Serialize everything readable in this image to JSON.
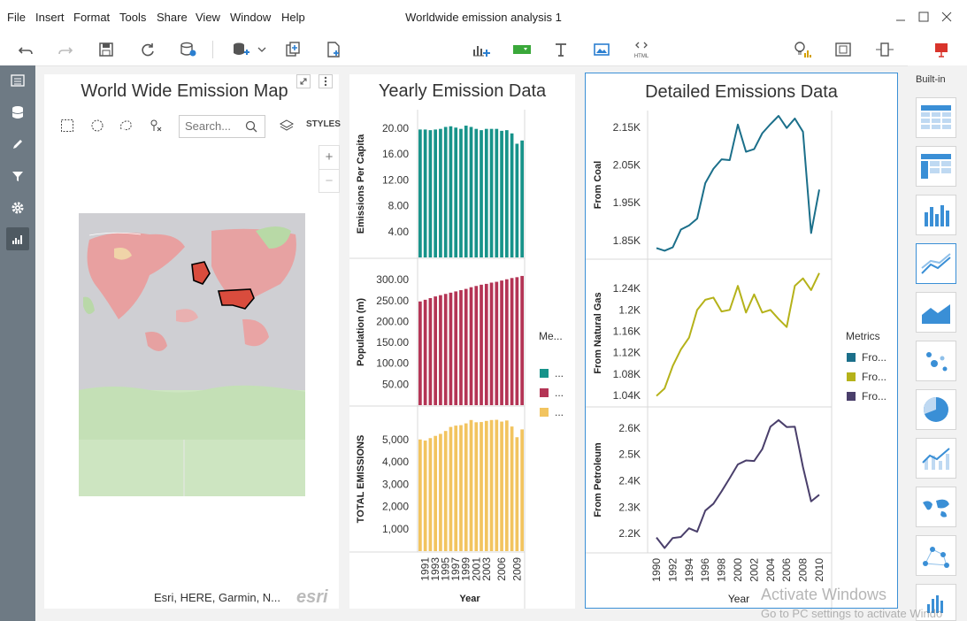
{
  "window": {
    "title": "Worldwide emission analysis 1"
  },
  "menu": [
    "File",
    "Insert",
    "Format",
    "Tools",
    "Share",
    "View",
    "Window",
    "Help"
  ],
  "toolbar_icons": [
    "undo-icon",
    "redo-icon",
    "save-icon",
    "refresh-icon",
    "data-source-icon",
    "add-data-icon",
    "copy-page-icon",
    "new-page-icon",
    "add-chart-icon",
    "add-filter-icon",
    "add-text-icon",
    "add-image-icon",
    "add-html-icon",
    "insights-icon",
    "fit-icon",
    "layout-icon",
    "presentation-icon"
  ],
  "toolbar": {
    "html_label": "HTML"
  },
  "map_panel": {
    "title": "World Wide Emission Map",
    "search_placeholder": "Search...",
    "styles_label": "STYLES",
    "attribution": "Esri, HERE, Garmin, N...",
    "esri_logo": "esri",
    "zoom_in": "+",
    "zoom_out": "−"
  },
  "yearly_panel": {
    "title": "Yearly Emission Data",
    "xlabel": "Year",
    "legend_title": "Me...",
    "legend_items": [
      "...",
      "...",
      "..."
    ]
  },
  "detailed_panel": {
    "title": "Detailed Emissions Data",
    "xlabel": "Year",
    "legend_title": "Metrics",
    "legend_items": [
      "Fro...",
      "Fro...",
      "Fro..."
    ]
  },
  "gallery": {
    "title": "Built-in"
  },
  "watermark": {
    "line1": "Activate Windows",
    "line2": "Go to PC settings to activate Windo"
  },
  "colors": {
    "teal": "#17938a",
    "crimson": "#b43455",
    "gold": "#f2c45f",
    "coal": "#1b6f8a",
    "gas": "#b5b21a",
    "petroleum": "#4a3f6b"
  },
  "chart_data": [
    {
      "type": "bar",
      "title": "Yearly Emission Data",
      "categories": [
        "1990",
        "1991",
        "1992",
        "1993",
        "1994",
        "1995",
        "1996",
        "1997",
        "1998",
        "1999",
        "2000",
        "2001",
        "2002",
        "2003",
        "2004",
        "2005",
        "2006",
        "2007",
        "2008",
        "2009",
        "2010"
      ],
      "xticks": [
        "1991",
        "1993",
        "1995",
        "1997",
        "1999",
        "2001",
        "2003",
        "2006",
        "2009"
      ],
      "xlabel": "Year",
      "panels": [
        {
          "ylabel": "Emissions Per Capita",
          "ylim": [
            0,
            21.5
          ],
          "yticks": [
            "4.00",
            "8.00",
            "12.00",
            "16.00",
            "20.00"
          ],
          "values": [
            19.8,
            19.8,
            19.7,
            19.8,
            19.9,
            20.2,
            20.3,
            20.1,
            19.9,
            20.4,
            20.2,
            19.9,
            19.7,
            19.9,
            19.9,
            19.9,
            19.6,
            19.7,
            19.2,
            17.6,
            18.1
          ]
        },
        {
          "ylabel": "Population (m)",
          "ylim": [
            0,
            330
          ],
          "yticks": [
            "50.00",
            "100.00",
            "150.00",
            "200.00",
            "250.00",
            "300.00"
          ],
          "values": [
            248,
            252,
            256,
            260,
            263,
            266,
            269,
            272,
            275,
            278,
            282,
            285,
            288,
            290,
            293,
            295,
            298,
            301,
            304,
            306,
            309
          ]
        },
        {
          "ylabel": "TOTAL EMISSIONS",
          "ylim": [
            0,
            6100
          ],
          "yticks": [
            "1,000",
            "2,000",
            "3,000",
            "4,000",
            "5,000"
          ],
          "values": [
            5000,
            4950,
            5060,
            5160,
            5250,
            5380,
            5560,
            5620,
            5640,
            5720,
            5870,
            5770,
            5780,
            5830,
            5870,
            5880,
            5800,
            5850,
            5580,
            5100,
            5450
          ]
        }
      ],
      "legend": {
        "title": "Me...",
        "entries": [
          "...",
          "...",
          "..."
        ]
      }
    },
    {
      "type": "line",
      "title": "Detailed Emissions Data",
      "x": [
        1990,
        1991,
        1992,
        1993,
        1994,
        1995,
        1996,
        1997,
        1998,
        1999,
        2000,
        2001,
        2002,
        2003,
        2004,
        2005,
        2006,
        2007,
        2008,
        2009,
        2010
      ],
      "xticks": [
        "1990",
        "1992",
        "1994",
        "1996",
        "1998",
        "2000",
        "2002",
        "2004",
        "2006",
        "2008",
        "2010"
      ],
      "xlabel": "Year",
      "series": [
        {
          "name": "From Coal",
          "ylabel": "From Coal",
          "ylim": [
            1.81,
            2.18
          ],
          "yticks": [
            "1.85K",
            "1.95K",
            "2.05K",
            "2.15K"
          ],
          "values": [
            1.83,
            1.823,
            1.832,
            1.879,
            1.89,
            1.908,
            2.002,
            2.04,
            2.065,
            2.063,
            2.157,
            2.085,
            2.092,
            2.134,
            2.158,
            2.18,
            2.148,
            2.173,
            2.138,
            1.87,
            1.985
          ]
        },
        {
          "name": "From Natural Gas",
          "ylabel": "From Natural Gas",
          "ylim": [
            1.025,
            1.285
          ],
          "yticks": [
            "1.04K",
            "1.08K",
            "1.12K",
            "1.16K",
            "1.2K",
            "1.24K"
          ],
          "values": [
            1.039,
            1.053,
            1.095,
            1.126,
            1.148,
            1.2,
            1.219,
            1.223,
            1.197,
            1.2,
            1.245,
            1.195,
            1.229,
            1.195,
            1.2,
            1.183,
            1.168,
            1.245,
            1.259,
            1.237,
            1.269
          ]
        },
        {
          "name": "From Petroleum",
          "ylabel": "From Petroleum",
          "ylim": [
            2.14,
            2.66
          ],
          "yticks": [
            "2.2K",
            "2.3K",
            "2.4K",
            "2.5K",
            "2.6K"
          ],
          "values": [
            2.185,
            2.145,
            2.183,
            2.187,
            2.22,
            2.207,
            2.287,
            2.313,
            2.36,
            2.41,
            2.462,
            2.477,
            2.475,
            2.52,
            2.605,
            2.63,
            2.604,
            2.605,
            2.452,
            2.322,
            2.347
          ]
        }
      ],
      "legend": {
        "title": "Metrics",
        "entries": [
          "Fro...",
          "Fro...",
          "Fro..."
        ]
      }
    }
  ]
}
